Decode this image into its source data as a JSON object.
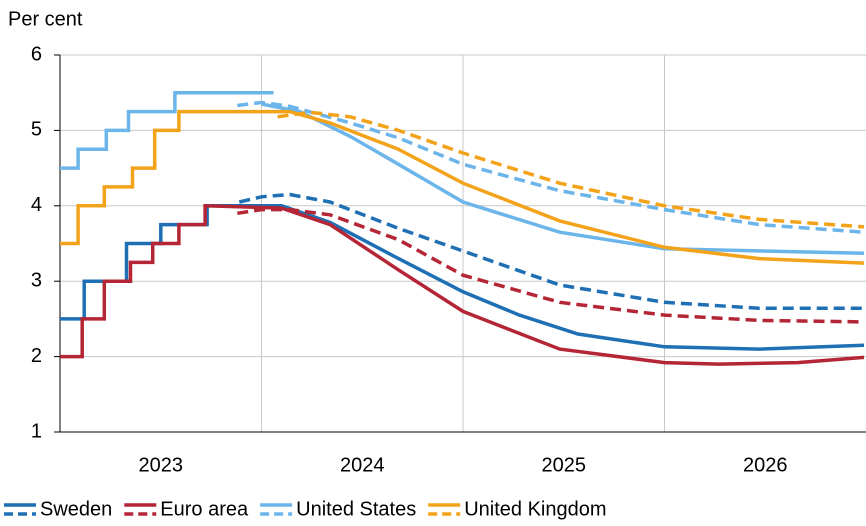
{
  "chart_data": {
    "type": "line",
    "y_label": "Per cent",
    "xlim": [
      2023,
      2027
    ],
    "xticks": [
      2023,
      2024,
      2025,
      2026
    ],
    "ylim": [
      1,
      6
    ],
    "yticks": [
      1,
      2,
      3,
      4,
      5,
      6
    ],
    "grid": true,
    "legend": "bottom",
    "series": [
      {
        "name": "Sweden",
        "color": "#1f6fb4",
        "x": [
          2023.0,
          2023.12,
          2023.12,
          2023.33,
          2023.33,
          2023.5,
          2023.5,
          2023.73,
          2023.73,
          2024.1,
          2024.34,
          2024.68,
          2025.0,
          2025.28,
          2025.57,
          2026.0,
          2026.47,
          2026.99
        ],
        "values": [
          2.5,
          2.5,
          3.0,
          3.0,
          3.5,
          3.5,
          3.75,
          3.75,
          4.0,
          4.0,
          3.78,
          3.3,
          2.86,
          2.55,
          2.3,
          2.13,
          2.1,
          2.15
        ],
        "forward": {
          "x": [
            2023.89,
            2024.0,
            2024.14,
            2024.34,
            2024.68,
            2025.0,
            2025.48,
            2026.0,
            2026.47,
            2026.99
          ],
          "values": [
            4.05,
            4.12,
            4.15,
            4.05,
            3.7,
            3.4,
            2.95,
            2.72,
            2.64,
            2.64
          ]
        }
      },
      {
        "name": "Euro area",
        "color": "#b42535",
        "x": [
          2023.0,
          2023.11,
          2023.11,
          2023.22,
          2023.22,
          2023.35,
          2023.35,
          2023.46,
          2023.46,
          2023.59,
          2023.59,
          2023.72,
          2023.72,
          2024.1,
          2024.34,
          2024.68,
          2025.0,
          2025.48,
          2026.0,
          2026.27,
          2026.66,
          2026.99
        ],
        "values": [
          2.0,
          2.0,
          2.5,
          2.5,
          3.0,
          3.0,
          3.25,
          3.25,
          3.5,
          3.5,
          3.75,
          3.75,
          4.0,
          3.97,
          3.75,
          3.15,
          2.6,
          2.1,
          1.92,
          1.9,
          1.92,
          1.99
        ],
        "forward": {
          "x": [
            2023.88,
            2024.0,
            2024.14,
            2024.34,
            2024.68,
            2025.0,
            2025.48,
            2026.0,
            2026.47,
            2026.99
          ],
          "values": [
            3.9,
            3.95,
            3.95,
            3.88,
            3.55,
            3.08,
            2.72,
            2.55,
            2.48,
            2.46
          ]
        }
      },
      {
        "name": "United States",
        "color": "#6cb5ea",
        "x": [
          2023.0,
          2023.09,
          2023.09,
          2023.23,
          2023.23,
          2023.34,
          2023.34,
          2023.57,
          2023.57,
          2024.06,
          2024.06,
          2024.0,
          2024.19,
          2024.44,
          2024.68,
          2025.0,
          2025.48,
          2026.0,
          2026.99
        ],
        "values": [
          4.5,
          4.5,
          4.75,
          4.75,
          5.0,
          5.0,
          5.25,
          5.25,
          5.5,
          5.5,
          null,
          5.35,
          5.25,
          4.92,
          4.55,
          4.05,
          3.65,
          3.43,
          3.37
        ],
        "forward": {
          "x": [
            2023.88,
            2024.0,
            2024.14,
            2024.44,
            2024.68,
            2025.0,
            2025.48,
            2026.0,
            2026.47,
            2026.99
          ],
          "values": [
            5.33,
            5.37,
            5.32,
            5.1,
            4.9,
            4.55,
            4.2,
            3.95,
            3.75,
            3.65
          ]
        }
      },
      {
        "name": "United Kingdom",
        "color": "#f2a31a",
        "x": [
          2023.0,
          2023.09,
          2023.09,
          2023.22,
          2023.22,
          2023.36,
          2023.36,
          2023.47,
          2023.47,
          2023.59,
          2023.59,
          2024.01,
          2024.14,
          2024.34,
          2024.68,
          2025.0,
          2025.48,
          2026.0,
          2026.47,
          2026.99
        ],
        "values": [
          3.5,
          3.5,
          4.0,
          4.0,
          4.25,
          4.25,
          4.5,
          4.5,
          5.0,
          5.0,
          5.25,
          5.25,
          5.25,
          5.1,
          4.75,
          4.3,
          3.8,
          3.45,
          3.3,
          3.24
        ],
        "forward": {
          "x": [
            2024.08,
            2024.24,
            2024.44,
            2024.68,
            2025.0,
            2025.48,
            2026.0,
            2026.47,
            2026.99
          ],
          "values": [
            5.18,
            5.24,
            5.18,
            5.0,
            4.7,
            4.3,
            4.0,
            3.82,
            3.72
          ]
        }
      }
    ]
  }
}
